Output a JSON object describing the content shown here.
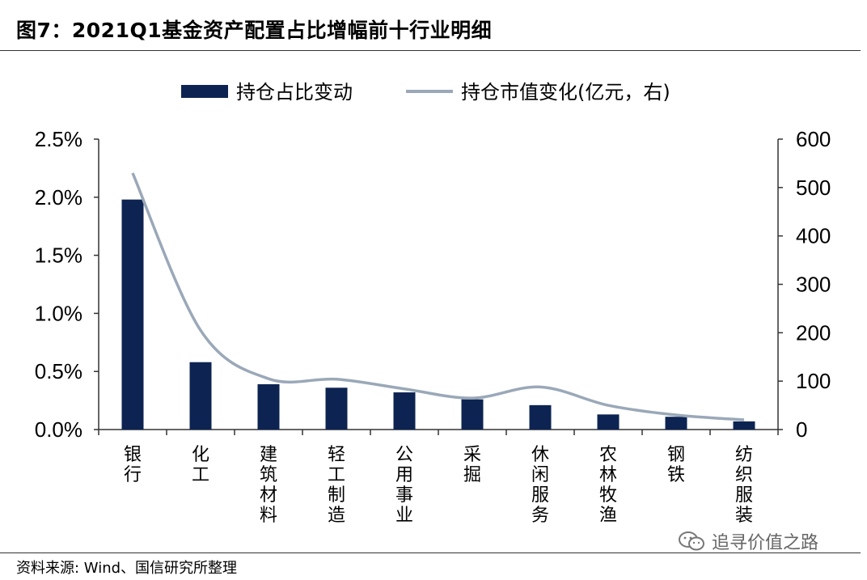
{
  "header": {
    "title": "图7：2021Q1基金资产配置占比增幅前十行业明细"
  },
  "footer": {
    "source": "资料来源: Wind、国信研究所整理"
  },
  "watermark": {
    "text": "追寻价值之路",
    "icon": "wechat-icon"
  },
  "chart_data": {
    "type": "bar",
    "categories": [
      "银行",
      "化工",
      "建筑材料",
      "轻工制造",
      "公用事业",
      "采掘",
      "休闲服务",
      "农林牧渔",
      "钢铁",
      "纺织服装"
    ],
    "series": [
      {
        "name": "持仓占比变动",
        "type": "bar",
        "axis": "left",
        "color": "#0d2452",
        "values": [
          1.98,
          0.58,
          0.39,
          0.36,
          0.32,
          0.26,
          0.21,
          0.13,
          0.11,
          0.07
        ]
      },
      {
        "name": "持仓市值变化(亿元，右)",
        "type": "line",
        "axis": "right",
        "color": "#9aa8b8",
        "values": [
          530,
          205,
          105,
          104,
          84,
          65,
          88,
          50,
          30,
          20
        ]
      }
    ],
    "y_left": {
      "min": 0,
      "max": 2.5,
      "ticks": [
        "0.0%",
        "0.5%",
        "1.0%",
        "1.5%",
        "2.0%",
        "2.5%"
      ]
    },
    "y_right": {
      "min": 0,
      "max": 600,
      "ticks": [
        "0",
        "100",
        "200",
        "300",
        "400",
        "500",
        "600"
      ]
    },
    "legend": "top-center",
    "grid": false
  }
}
